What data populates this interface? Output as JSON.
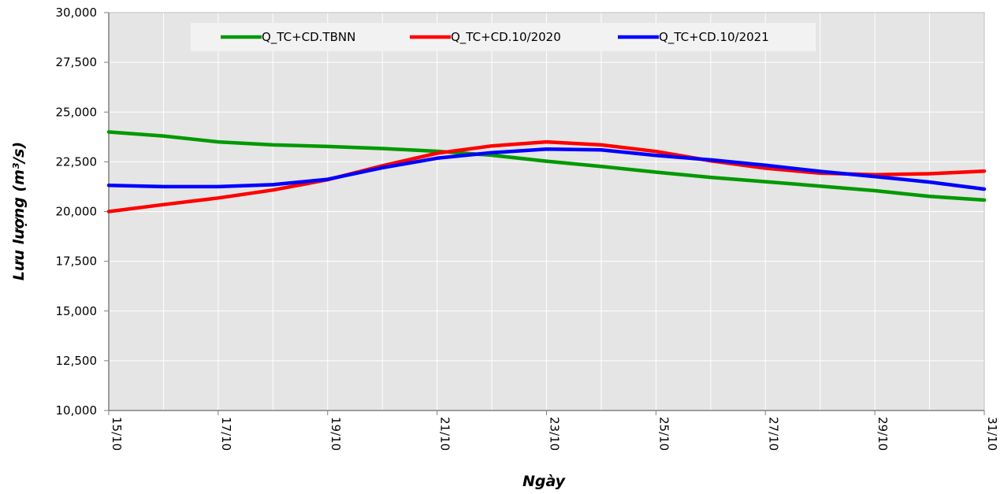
{
  "chart_data": {
    "type": "line",
    "xlabel": "Ngày",
    "ylabel": "Lưu lượng (m³/s)",
    "x": [
      "15/10",
      "16/10",
      "17/10",
      "18/10",
      "19/10",
      "20/10",
      "21/10",
      "22/10",
      "23/10",
      "24/10",
      "25/10",
      "26/10",
      "27/10",
      "28/10",
      "29/10",
      "30/10",
      "31/10"
    ],
    "xtick_labels": [
      "15/10",
      "17/10",
      "19/10",
      "21/10",
      "23/10",
      "25/10",
      "27/10",
      "29/10",
      "31/10"
    ],
    "ylim": [
      10000,
      30000
    ],
    "yticks": [
      10000,
      12500,
      15000,
      17500,
      20000,
      22500,
      25000,
      27500,
      30000
    ],
    "ytick_labels": [
      "10,000",
      "12,500",
      "15,000",
      "17,500",
      "20,000",
      "22,500",
      "25,000",
      "27,500",
      "30,000"
    ],
    "grid": true,
    "legend_position": "top",
    "series": [
      {
        "name": "Q_TC+CD.TBNN",
        "color": "#009900",
        "values": [
          24000,
          23800,
          23500,
          23350,
          23270,
          23170,
          23030,
          22830,
          22530,
          22270,
          21980,
          21720,
          21500,
          21280,
          21050,
          20760,
          20580
        ]
      },
      {
        "name": "Q_TC+CD.10/2020",
        "color": "#ff0000",
        "values": [
          20000,
          20350,
          20680,
          21080,
          21600,
          22300,
          22930,
          23300,
          23500,
          23350,
          23020,
          22550,
          22180,
          21930,
          21850,
          21900,
          22030
        ]
      },
      {
        "name": "Q_TC+CD.10/2021",
        "color": "#0000ff",
        "values": [
          21320,
          21250,
          21250,
          21350,
          21620,
          22200,
          22680,
          22960,
          23140,
          23100,
          22820,
          22600,
          22330,
          22020,
          21760,
          21480,
          21130
        ]
      }
    ]
  }
}
